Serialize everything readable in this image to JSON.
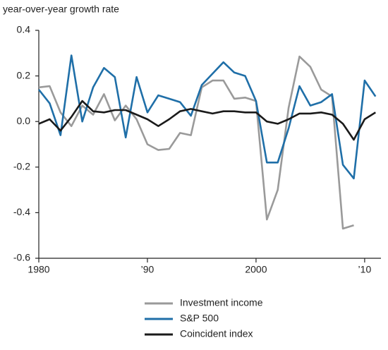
{
  "chart_data": {
    "type": "line",
    "title": "year-over-year growth rate",
    "x": [
      1980,
      1981,
      1982,
      1983,
      1984,
      1985,
      1986,
      1987,
      1988,
      1989,
      1990,
      1991,
      1992,
      1993,
      1994,
      1995,
      1996,
      1997,
      1998,
      1999,
      2000,
      2001,
      2002,
      2003,
      2004,
      2005,
      2006,
      2007,
      2008,
      2009,
      2010,
      2011
    ],
    "series": [
      {
        "name": "Investment income",
        "color": "#9a9a9a",
        "values": [
          0.15,
          0.155,
          0.04,
          -0.02,
          0.07,
          0.03,
          0.12,
          0.005,
          0.07,
          0.01,
          -0.1,
          -0.125,
          -0.12,
          -0.05,
          -0.06,
          0.15,
          0.18,
          0.18,
          0.1,
          0.105,
          0.09,
          -0.43,
          -0.3,
          0.06,
          0.285,
          0.24,
          0.14,
          0.11,
          -0.47,
          -0.455,
          null,
          null
        ]
      },
      {
        "name": "S&P 500",
        "color": "#1f6fa8",
        "values": [
          0.14,
          0.08,
          -0.06,
          0.29,
          0.0,
          0.15,
          0.235,
          0.195,
          -0.07,
          0.195,
          0.04,
          0.115,
          0.1,
          0.085,
          0.025,
          0.16,
          0.21,
          0.26,
          0.215,
          0.2,
          0.09,
          -0.18,
          -0.18,
          -0.03,
          0.155,
          0.07,
          0.085,
          0.12,
          -0.19,
          -0.25,
          0.18,
          0.11
        ]
      },
      {
        "name": "Coincident index",
        "color": "#1a1a1a",
        "values": [
          -0.01,
          0.01,
          -0.04,
          0.02,
          0.09,
          0.045,
          0.04,
          0.05,
          0.05,
          0.03,
          0.01,
          -0.02,
          0.01,
          0.045,
          0.055,
          0.045,
          0.035,
          0.045,
          0.045,
          0.04,
          0.04,
          0.0,
          -0.01,
          0.01,
          0.035,
          0.035,
          0.04,
          0.03,
          -0.01,
          -0.08,
          0.01,
          0.04
        ]
      }
    ],
    "xlim": [
      1980,
      2011.5
    ],
    "xticks": [
      1980,
      {
        "value": 1990,
        "label": "’90"
      },
      2000,
      {
        "value": 2010,
        "label": "’10"
      }
    ],
    "ylim": [
      -0.6,
      0.4
    ],
    "yticks": [
      0.4,
      0.2,
      {
        "value": 0,
        "label": "0.0"
      },
      -0.2,
      -0.4,
      -0.6
    ]
  }
}
